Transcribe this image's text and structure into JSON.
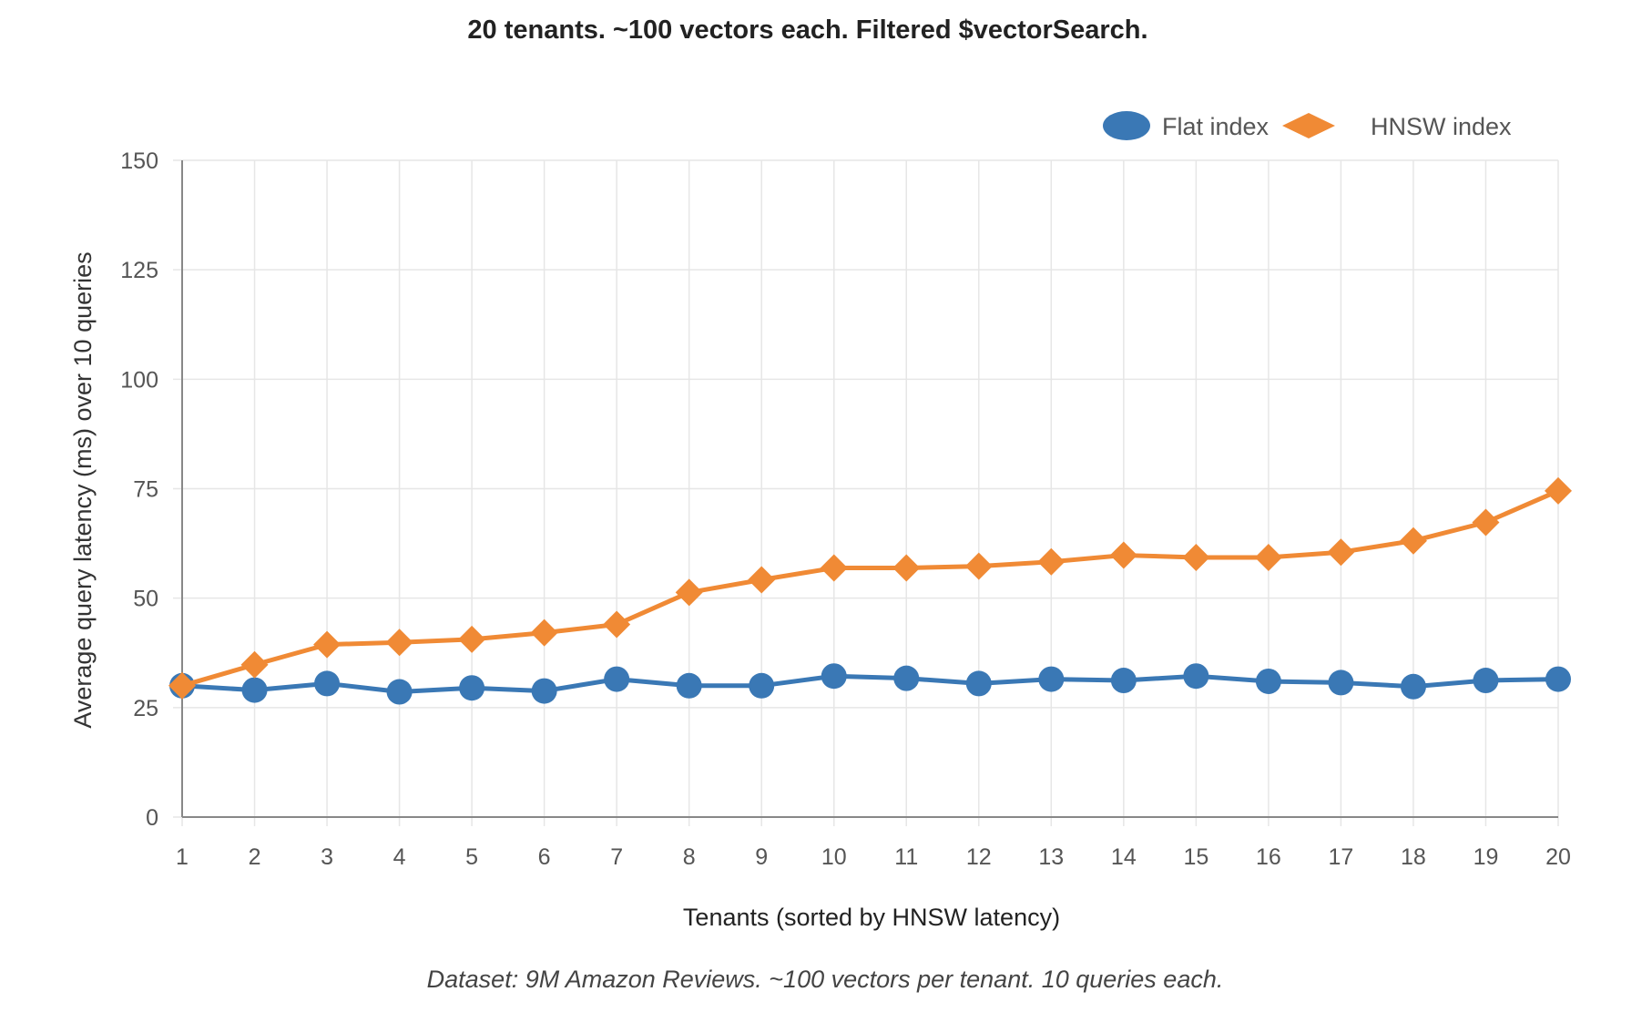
{
  "chart_data": {
    "type": "line",
    "title": "20 tenants. ~100 vectors each. Filtered $vectorSearch.",
    "xlabel": "Tenants (sorted by HNSW latency)",
    "ylabel": "Average query latency (ms) over 10 queries",
    "caption": "Dataset: 9M Amazon Reviews. ~100 vectors per tenant. 10 queries each.",
    "categories": [
      "1",
      "2",
      "3",
      "4",
      "5",
      "6",
      "7",
      "8",
      "9",
      "10",
      "11",
      "12",
      "13",
      "14",
      "15",
      "16",
      "17",
      "18",
      "19",
      "20"
    ],
    "ylim": [
      0,
      150
    ],
    "yticks": [
      "0",
      "25",
      "50",
      "75",
      "100",
      "125",
      "150"
    ],
    "grid": true,
    "legend_position": "top-right",
    "series": [
      {
        "name": "Flat index",
        "color": "#3a78b5",
        "marker": "circle",
        "values": [
          30,
          29,
          30.5,
          28.6,
          29.5,
          28.8,
          31.5,
          30,
          30,
          32.2,
          31.7,
          30.5,
          31.5,
          31.2,
          32.2,
          31,
          30.7,
          29.8,
          31.2,
          31.5
        ]
      },
      {
        "name": "HNSW index",
        "color": "#f08a35",
        "marker": "diamond",
        "values": [
          30,
          34.8,
          39.4,
          39.9,
          40.6,
          42.1,
          44,
          51.3,
          54.2,
          56.9,
          56.9,
          57.3,
          58.3,
          59.8,
          59.3,
          59.3,
          60.5,
          63.1,
          67.3,
          74.5
        ]
      }
    ]
  }
}
